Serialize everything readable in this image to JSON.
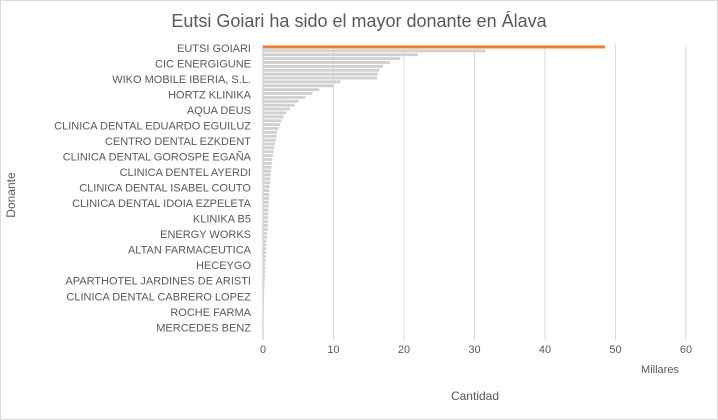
{
  "chart_data": {
    "type": "barh",
    "title": "Eutsi Goiari   ha sido el mayor donante en Álava",
    "x_label": "Cantidad",
    "y_label": "Donante",
    "x_units": "Millares",
    "categories": [
      "EUTSI GOIARI",
      null,
      null,
      null,
      "CIC ENERGIGUNE",
      null,
      null,
      null,
      "WIKO MOBILE IBERIA, S.L.",
      null,
      null,
      null,
      "HORTZ KLINIKA",
      null,
      null,
      null,
      "AQUA DEUS",
      null,
      null,
      null,
      "CLINICA DENTAL EDUARDO EGUILUZ",
      null,
      null,
      null,
      "CENTRO DENTAL EZKDENT",
      null,
      null,
      null,
      "CLINICA DENTAL GOROSPE EGAÑA",
      null,
      null,
      null,
      "CLINICA DENTEL AYERDI",
      null,
      null,
      null,
      "CLINICA DENTAL ISABEL COUTO",
      null,
      null,
      null,
      "CLINICA DENTAL IDOIA EZPELETA",
      null,
      null,
      null,
      "KLINIKA B5",
      null,
      null,
      null,
      "ENERGY WORKS",
      null,
      null,
      null,
      "ALTAN FARMACEUTICA",
      null,
      null,
      null,
      "HECEYGO",
      null,
      null,
      null,
      "APARTHOTEL JARDINES DE ARISTI",
      null,
      null,
      null,
      "CLINICA DENTAL CABRERO LOPEZ",
      null,
      null,
      null,
      "ROCHE FARMA",
      null,
      null,
      null,
      "MERCEDES BENZ",
      null,
      null,
      null
    ],
    "values": [
      48.5,
      31.5,
      22,
      19.5,
      18,
      17,
      16.5,
      16.3,
      16.2,
      11,
      10,
      8,
      7,
      6,
      5,
      4.5,
      3.8,
      3.3,
      2.9,
      2.6,
      2.4,
      2.2,
      2.0,
      1.9,
      1.8,
      1.7,
      1.6,
      1.5,
      1.4,
      1.3,
      1.25,
      1.2,
      1.15,
      1.1,
      1.05,
      1.0,
      0.95,
      0.9,
      0.88,
      0.85,
      0.82,
      0.8,
      0.78,
      0.75,
      0.72,
      0.7,
      0.68,
      0.65,
      0.6,
      0.55,
      0.5,
      0.48,
      0.45,
      0.42,
      0.4,
      0.38,
      0.35,
      0.32,
      0.3,
      0.28,
      0.25,
      0.22,
      0.2,
      0.18,
      0.16,
      0.14,
      0.12,
      0.1,
      0.09,
      0.08,
      0.07,
      0.06,
      0.05,
      0.04,
      0.03,
      0.02
    ],
    "color": "#d0d0d0",
    "highlight_color": "#ed7d31",
    "highlight_category": "EUTSI GOIARI",
    "xlim": [
      0,
      60
    ],
    "xticks": [
      0,
      10,
      20,
      30,
      40,
      50,
      60
    ],
    "grid": true
  }
}
